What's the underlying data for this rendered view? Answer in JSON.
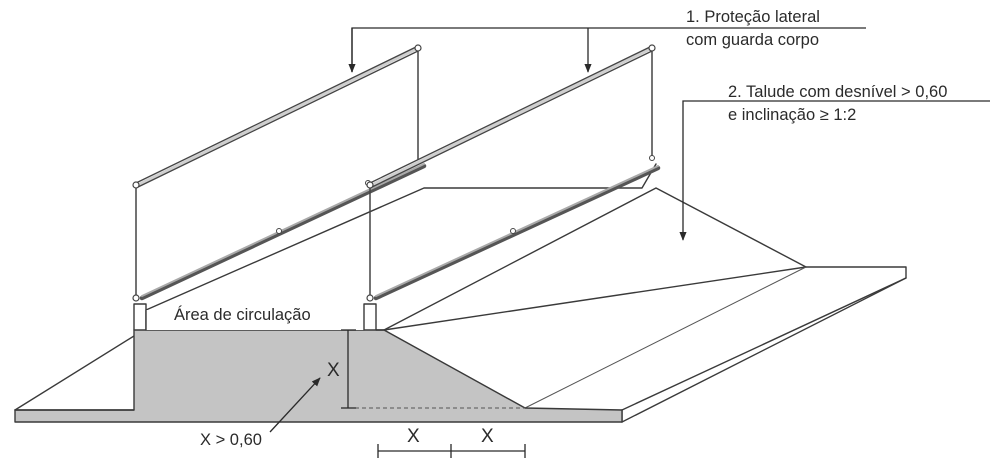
{
  "labels": {
    "lateral_protection_line1": "1. Proteção lateral",
    "lateral_protection_line2": "com guarda corpo",
    "slope_line1": "2. Talude com desnível > 0,60",
    "slope_line2": "e inclinação ≥ 1:2",
    "circulation_area": "Área de circulação",
    "height_condition": "X > 0,60"
  },
  "dimensions": {
    "vertical": "X",
    "horizontal_left": "X",
    "horizontal_right": "X"
  },
  "colors": {
    "section_fill": "#c4c4c4",
    "line": "#3a3a3a",
    "background": "#ffffff"
  }
}
